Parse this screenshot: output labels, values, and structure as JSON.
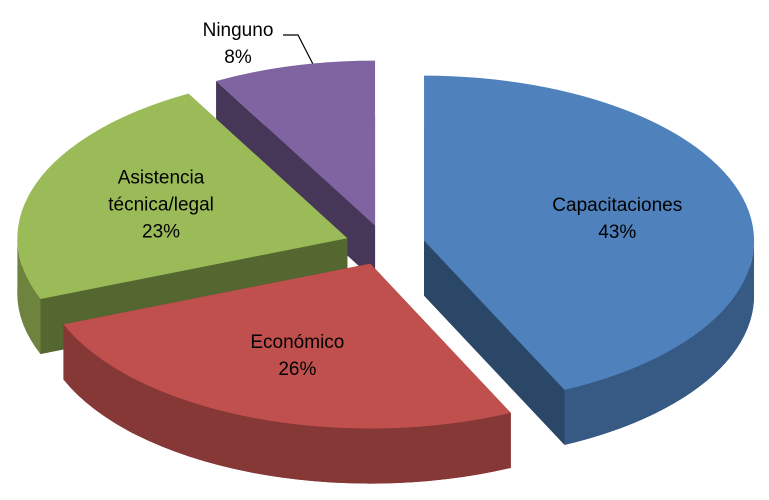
{
  "chart_data": {
    "type": "pie3d",
    "categories": [
      "Capacitaciones",
      "Económico",
      "Asistencia técnica/legal",
      "Ninguno"
    ],
    "values": [
      43,
      26,
      23,
      8
    ],
    "value_labels": [
      "43%",
      "26%",
      "23%",
      "8%"
    ],
    "colors": [
      "#4f81bd",
      "#c0504d",
      "#9bbb59",
      "#8064a2"
    ]
  }
}
